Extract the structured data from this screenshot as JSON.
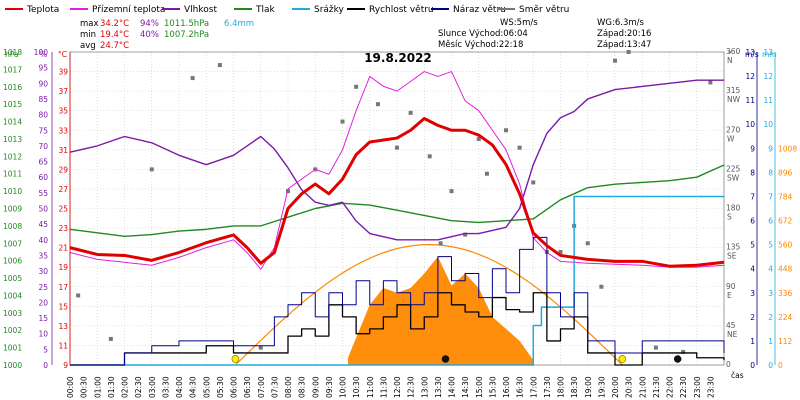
{
  "legend": [
    {
      "label": "Teplota",
      "color": "#e00000"
    },
    {
      "label": "Přízemní teplota",
      "color": "#e020e0"
    },
    {
      "label": "Vlhkost",
      "color": "#7a1aa8"
    },
    {
      "label": "Tlak",
      "color": "#228822"
    },
    {
      "label": "Srážky",
      "color": "#22aadd"
    },
    {
      "label": "Rychlost větru",
      "color": "#000000"
    },
    {
      "label": "Náraz větru",
      "color": "#000088"
    },
    {
      "label": "Směr větru",
      "color": "#777777"
    }
  ],
  "stats": {
    "max_label": "max",
    "max_temp": "34.2°C",
    "max_hum": "94%",
    "max_press": "1011.5hPa",
    "max_rain": "6.4mm",
    "min_label": "min",
    "min_temp": "19.4°C",
    "min_hum": "40%",
    "min_press": "1007.2hPa",
    "avg_label": "avg",
    "avg_temp": "24.7°C",
    "ws": "WS:5m/s",
    "wg": "WG:6.3m/s",
    "sun_rise": "Slunce Východ:06:04",
    "sun_set": "Západ:20:16",
    "moon_rise": "Měsíc Východ:22:18",
    "moon_set": "Západ:13:47"
  },
  "title": "19.8.2022",
  "axes": {
    "hpa_title": "hPa",
    "pct_title": "%",
    "c_title": "°C",
    "deg_title": "°",
    "ms_title": "m/s",
    "mm_title": "mm",
    "time_title": "čas",
    "hpa_ticks": [
      "1000",
      "1001",
      "1002",
      "1003",
      "1004",
      "1005",
      "1006",
      "1007",
      "1008",
      "1009",
      "1010",
      "1011",
      "1012",
      "1013",
      "1014",
      "1015",
      "1016",
      "1017",
      "1018"
    ],
    "pct_ticks": [
      "0",
      "5",
      "10",
      "15",
      "20",
      "25",
      "30",
      "35",
      "40",
      "45",
      "50",
      "55",
      "60",
      "65",
      "70",
      "75",
      "80",
      "85",
      "90",
      "95",
      "100"
    ],
    "c_ticks": [
      "9",
      "11",
      "13",
      "15",
      "17",
      "19",
      "21",
      "23",
      "25",
      "27",
      "29",
      "31",
      "33",
      "35",
      "37",
      "39"
    ],
    "dir_ticks": [
      {
        "deg": "0",
        "card": ""
      },
      {
        "deg": "45",
        "card": "NE"
      },
      {
        "deg": "90",
        "card": "E"
      },
      {
        "deg": "135",
        "card": "SE"
      },
      {
        "deg": "180",
        "card": "S"
      },
      {
        "deg": "225",
        "card": "SW"
      },
      {
        "deg": "270",
        "card": "W"
      },
      {
        "deg": "315",
        "card": "NW"
      },
      {
        "deg": "360",
        "card": "N"
      }
    ],
    "ms_ticks": [
      "0",
      "1",
      "2",
      "3",
      "4",
      "5",
      "6",
      "7",
      "8",
      "9",
      "10",
      "11",
      "12",
      "13"
    ],
    "mm_ticks": [
      "0",
      "112",
      "224",
      "336",
      "448",
      "560",
      "672",
      "784",
      "896",
      "1008"
    ],
    "time_ticks": [
      "00:00",
      "00:30",
      "01:00",
      "01:30",
      "02:00",
      "02:30",
      "03:00",
      "03:30",
      "04:00",
      "04:30",
      "05:00",
      "05:30",
      "06:00",
      "06:30",
      "07:00",
      "07:30",
      "08:00",
      "08:30",
      "09:00",
      "09:30",
      "10:00",
      "10:30",
      "11:00",
      "11:30",
      "12:00",
      "12:30",
      "13:00",
      "13:30",
      "14:00",
      "14:30",
      "15:00",
      "15:30",
      "16:00",
      "16:30",
      "17:00",
      "17:30",
      "18:00",
      "18:30",
      "19:00",
      "19:30",
      "20:00",
      "20:30",
      "21:00",
      "21:30",
      "22:00",
      "22:30",
      "23:00",
      "23:30"
    ]
  },
  "chart_data": {
    "type": "line",
    "title": "19.8.2022",
    "x_unit": "hour",
    "temperature": {
      "name": "Teplota",
      "color": "#e00000",
      "unit": "°C",
      "x": [
        0,
        1,
        2,
        3,
        4,
        5,
        6,
        6.5,
        7,
        7.5,
        8,
        8.5,
        9,
        9.5,
        10,
        10.5,
        11,
        11.5,
        12,
        12.5,
        13,
        13.5,
        14,
        14.5,
        15,
        15.5,
        16,
        16.5,
        17,
        17.5,
        18,
        19,
        20,
        21,
        22,
        23,
        24
      ],
      "y": [
        21,
        20.3,
        20.2,
        19.7,
        20.5,
        21.5,
        22.3,
        21,
        19.4,
        20.5,
        25,
        26.5,
        27.5,
        26.5,
        28,
        30.5,
        31.8,
        32,
        32.2,
        33,
        34.2,
        33.5,
        33,
        33,
        32.5,
        31.5,
        29.5,
        26.5,
        22.5,
        21.2,
        20.2,
        19.8,
        19.6,
        19.6,
        19.1,
        19.2,
        19.5
      ]
    },
    "ground_temperature": {
      "name": "Přízemní teplota",
      "color": "#e020e0",
      "unit": "°C",
      "x": [
        0,
        1,
        2,
        3,
        4,
        5,
        6,
        6.5,
        7,
        7.5,
        8,
        8.5,
        9,
        9.5,
        10,
        10.5,
        11,
        11.5,
        12,
        12.5,
        13,
        13.5,
        14,
        14.5,
        15,
        15.5,
        16,
        16.5,
        17,
        17.5,
        18,
        19,
        20,
        21,
        22,
        23,
        24
      ],
      "y": [
        20.5,
        19.8,
        19.5,
        19.2,
        20,
        21,
        21.8,
        20.5,
        18.8,
        21,
        27,
        28,
        29,
        28.5,
        31,
        35,
        38.5,
        37.5,
        37,
        38,
        39,
        38.5,
        39,
        36,
        35,
        33,
        31,
        27.5,
        22,
        20.5,
        19.6,
        19.4,
        19.3,
        19.2,
        19,
        19,
        19.2
      ]
    },
    "humidity": {
      "name": "Vlhkost",
      "color": "#7a1aa8",
      "unit": "%",
      "x": [
        0,
        1,
        2,
        3,
        4,
        5,
        6,
        6.5,
        7,
        7.5,
        8,
        8.5,
        9,
        9.5,
        10,
        10.5,
        11,
        11.5,
        12,
        12.5,
        13,
        13.5,
        14,
        14.5,
        15,
        15.5,
        16,
        16.5,
        17,
        17.5,
        18,
        18.5,
        19,
        20,
        21,
        22,
        23,
        24
      ],
      "y": [
        68,
        70,
        73,
        71,
        67,
        64,
        67,
        70,
        73,
        69,
        63,
        56,
        52,
        51,
        52,
        46,
        42,
        41,
        40,
        40,
        40,
        40,
        41,
        42,
        42,
        43,
        44,
        50,
        64,
        74,
        79,
        81,
        85,
        88,
        89,
        90,
        91,
        91
      ]
    },
    "pressure": {
      "name": "Tlak",
      "color": "#228822",
      "unit": "hPa",
      "x": [
        0,
        1,
        2,
        3,
        4,
        5,
        6,
        7,
        8,
        9,
        10,
        11,
        12,
        13,
        14,
        15,
        16,
        17,
        18,
        19,
        20,
        21,
        22,
        23,
        24
      ],
      "y": [
        1007.8,
        1007.6,
        1007.4,
        1007.5,
        1007.7,
        1007.8,
        1008,
        1008,
        1008.5,
        1009,
        1009.3,
        1009.2,
        1008.9,
        1008.6,
        1008.3,
        1008.2,
        1008.3,
        1008.4,
        1009.5,
        1010.2,
        1010.4,
        1010.5,
        1010.6,
        1010.8,
        1011.5
      ]
    },
    "rain": {
      "name": "Srážky",
      "color": "#22aadd",
      "unit": "mm",
      "x": [
        0,
        16.8,
        17,
        17.3,
        17.5,
        18.2,
        18.5,
        24
      ],
      "y": [
        0,
        0,
        1.5,
        2.2,
        2.2,
        2.2,
        6.4,
        6.4
      ]
    },
    "wind_speed": {
      "name": "Rychlost větru",
      "color": "#000000",
      "unit": "m/s",
      "x": [
        0,
        1,
        2,
        3,
        4,
        5,
        6,
        7,
        8,
        8.5,
        9,
        9.5,
        10,
        10.5,
        11,
        11.5,
        12,
        12.5,
        13,
        13.5,
        14,
        14.5,
        15,
        15.5,
        16,
        16.5,
        17,
        17.5,
        18,
        18.5,
        19,
        20,
        21,
        22,
        23,
        24
      ],
      "y": [
        0,
        0,
        0.5,
        0.5,
        0.5,
        0.8,
        0.5,
        0.5,
        1.2,
        1.5,
        1.2,
        2.5,
        2,
        1.3,
        1.5,
        2,
        2.5,
        1.5,
        2,
        3,
        2.5,
        2.2,
        2,
        2.8,
        2.3,
        2.2,
        3,
        1,
        1.5,
        2,
        0.5,
        0,
        0.5,
        0.5,
        0.3,
        0.2
      ]
    },
    "wind_gust": {
      "name": "Náraz větru",
      "color": "#000088",
      "unit": "m/s",
      "x": [
        0,
        1,
        2,
        3,
        4,
        5,
        6,
        7,
        7.5,
        8,
        8.5,
        9,
        9.5,
        10,
        10.5,
        11,
        11.5,
        12,
        12.5,
        13,
        13.5,
        14,
        14.5,
        15,
        15.5,
        16,
        16.5,
        17,
        17.5,
        18,
        18.5,
        19,
        20,
        21,
        22,
        23,
        24
      ],
      "y": [
        0,
        0,
        0.5,
        0.8,
        1,
        1,
        0.8,
        0.8,
        2,
        2.5,
        3,
        2,
        3,
        2.5,
        3.5,
        2.5,
        3.5,
        3,
        2.5,
        3,
        4.5,
        3.5,
        3.8,
        2.8,
        4,
        3,
        4.8,
        5.3,
        3,
        2,
        3,
        1,
        0.5,
        1,
        1,
        1,
        0.5
      ]
    },
    "sun": {
      "color": "#ff8800",
      "sunrise_h": 6.07,
      "sunset_h": 20.27,
      "peak_ms": 5.0
    },
    "solar_fill": {
      "color": "#ff8800",
      "x": [
        10.2,
        11,
        11.5,
        12,
        12.5,
        13,
        13.5,
        14,
        14.5,
        15,
        15.5,
        16,
        16.5,
        17
      ],
      "y": [
        0.3,
        2.5,
        3.2,
        3,
        3.2,
        3.8,
        4.5,
        3.3,
        3.8,
        3.2,
        2,
        1.5,
        1,
        0.2
      ]
    },
    "wind_direction": {
      "name": "Směr větru",
      "color": "#777777",
      "unit": "°",
      "x": [
        0.3,
        1.5,
        3,
        4.5,
        5.5,
        7,
        8,
        9,
        10,
        10.5,
        11.3,
        12,
        12.5,
        13.2,
        13.6,
        14,
        14.5,
        15,
        15.3,
        16,
        16.5,
        17,
        17.5,
        18,
        18.5,
        19,
        19.5,
        20,
        20.5,
        21.5,
        22.5,
        23.5
      ],
      "y": [
        80,
        30,
        225,
        330,
        345,
        20,
        200,
        225,
        280,
        320,
        300,
        250,
        290,
        240,
        140,
        200,
        150,
        260,
        220,
        270,
        250,
        210,
        130,
        130,
        160,
        140,
        90,
        350,
        360,
        20,
        15,
        325
      ]
    },
    "ylim_temp": [
      9,
      41
    ],
    "ylim_pct": [
      0,
      100
    ],
    "ylim_hpa": [
      1000,
      1018
    ],
    "ylim_ms": [
      0,
      13
    ],
    "ylim_deg": [
      0,
      360
    ]
  }
}
